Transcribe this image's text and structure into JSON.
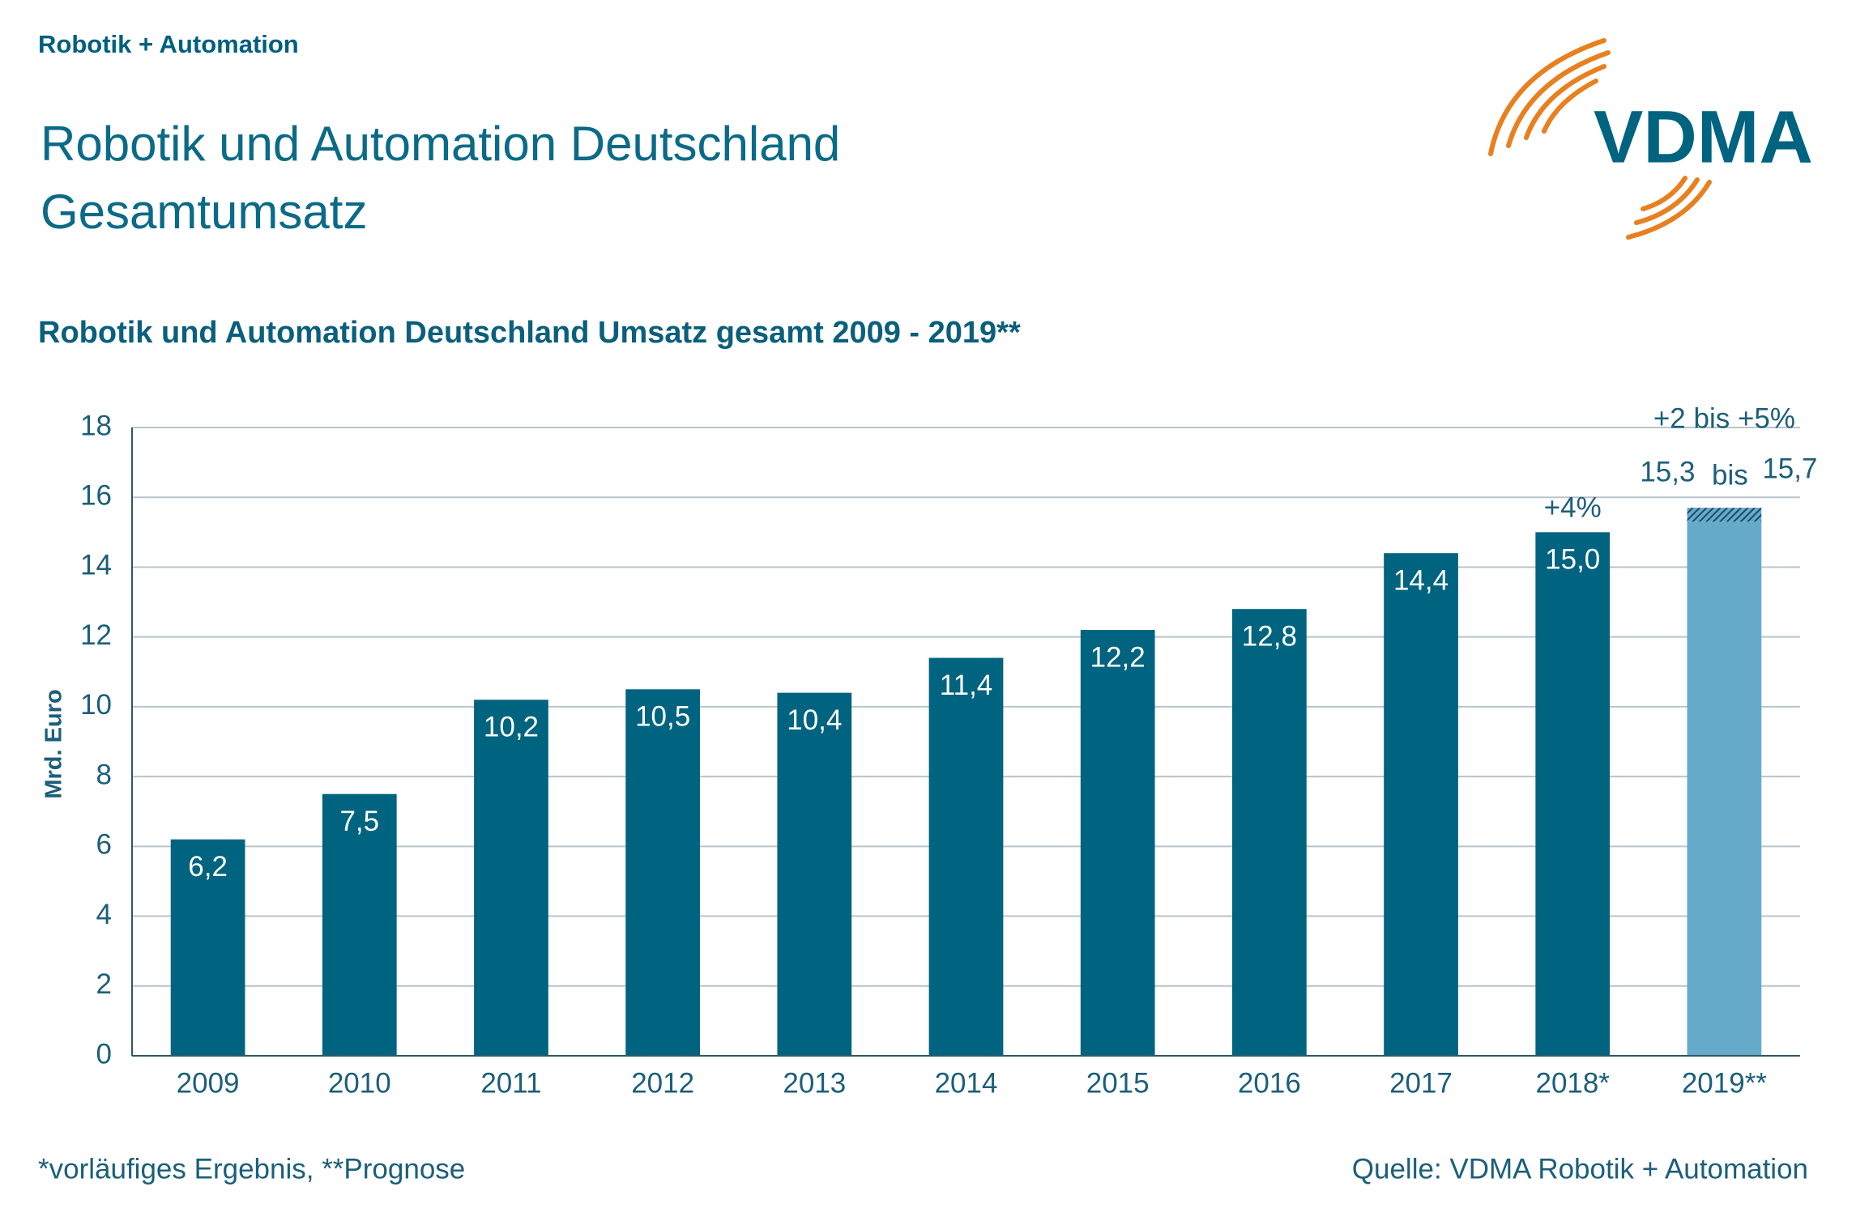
{
  "header": "Robotik + Automation",
  "logo": "VDMA",
  "title_lines": [
    "Robotik und Automation Deutschland",
    "Gesamtumsatz"
  ],
  "footnote": "*vorläufiges Ergebnis, **Prognose",
  "source": "Quelle: VDMA Robotik + Automation",
  "chart_data": {
    "type": "bar",
    "title": "Robotik und Automation Deutschland Umsatz gesamt 2009 - 2019**",
    "y_label": "Mrd. Euro",
    "categories": [
      "2009",
      "2010",
      "2011",
      "2012",
      "2013",
      "2014",
      "2015",
      "2016",
      "2017",
      "2018*",
      "2019**"
    ],
    "values": [
      6.2,
      7.5,
      10.2,
      10.5,
      10.4,
      11.4,
      12.2,
      12.8,
      14.4,
      15.0,
      15.3
    ],
    "value_labels": [
      "6,2",
      "7,5",
      "10,2",
      "10,5",
      "10,4",
      "11,4",
      "12,2",
      "12,8",
      "14,4",
      "15,0",
      "15,3"
    ],
    "colors": [
      "#00637f",
      "#00637f",
      "#00637f",
      "#00637f",
      "#00637f",
      "#00637f",
      "#00637f",
      "#00637f",
      "#00637f",
      "#00637f",
      "#66aac9"
    ],
    "forecast": {
      "category": "2019**",
      "high": 15.7,
      "high_label": "15,7",
      "connector": "bis",
      "color": "#1d4a66"
    },
    "annotations": [
      {
        "text": "+4%",
        "category": "2018*"
      },
      {
        "text": "+2 bis +5%",
        "category": "2019**"
      }
    ],
    "ylim": [
      0,
      18
    ],
    "yticks": [
      0,
      2,
      4,
      6,
      8,
      10,
      12,
      14,
      16,
      18
    ],
    "grid": true
  }
}
